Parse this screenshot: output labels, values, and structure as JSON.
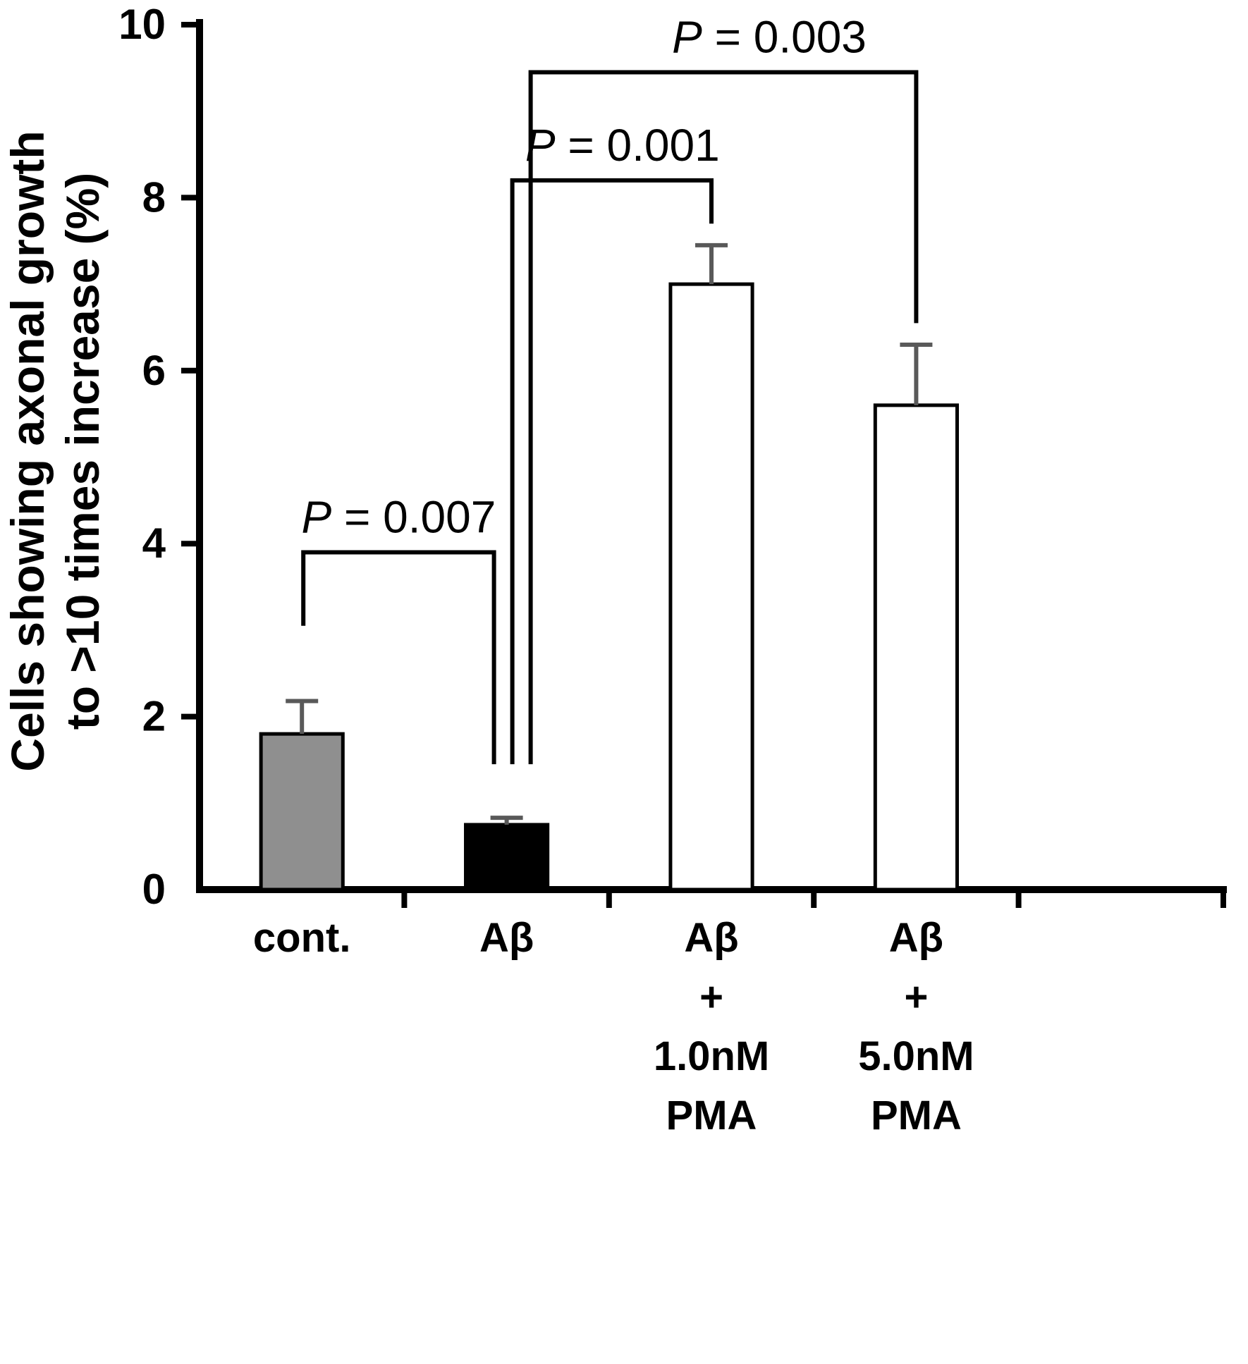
{
  "chart_data": {
    "type": "bar",
    "title": "",
    "ylabel_lines": [
      "Cells showing axonal growth",
      "to >10 times increase (%)"
    ],
    "xlabel": "",
    "ylim": [
      0,
      10
    ],
    "yticks": [
      0,
      2,
      4,
      6,
      8,
      10
    ],
    "grid": false,
    "legend": "none",
    "categories": [
      {
        "label_lines": [
          "cont."
        ],
        "value": 1.8,
        "error": 0.38,
        "fill": "#8f8f8f"
      },
      {
        "label_lines": [
          "Aβ"
        ],
        "value": 0.75,
        "error": 0.08,
        "fill": "#000000"
      },
      {
        "label_lines": [
          "Aβ",
          "+",
          "1.0nM",
          "PMA"
        ],
        "value": 7.0,
        "error": 0.45,
        "fill": "#ffffff"
      },
      {
        "label_lines": [
          "Aβ",
          "+",
          "5.0nM",
          "PMA"
        ],
        "value": 5.6,
        "error": 0.7,
        "fill": "#ffffff"
      }
    ],
    "significance_brackets": [
      {
        "label": "P = 0.007",
        "from": 0,
        "to": 1,
        "top": 3.9,
        "from_drop": 3.05,
        "to_drop": 1.45,
        "from_dx": 2,
        "to_dx": -18,
        "label_dx": 0
      },
      {
        "label": "P = 0.001",
        "from": 1,
        "to": 2,
        "top": 8.2,
        "from_drop": 1.45,
        "to_drop": 7.7,
        "from_dx": 8,
        "to_dx": 0,
        "label_dx": 15
      },
      {
        "label": "P = 0.003",
        "from": 1,
        "to": 3,
        "top": 9.45,
        "from_drop": 1.45,
        "to_drop": 6.55,
        "from_dx": 34,
        "to_dx": 0,
        "label_dx": 65
      }
    ],
    "layout": {
      "bands": 5,
      "bar_width_ratio": 0.4
    },
    "colors": {
      "axis": "#000000",
      "error_bar": "#595959",
      "bracket": "#000000",
      "bar_outline": "#000000"
    }
  }
}
